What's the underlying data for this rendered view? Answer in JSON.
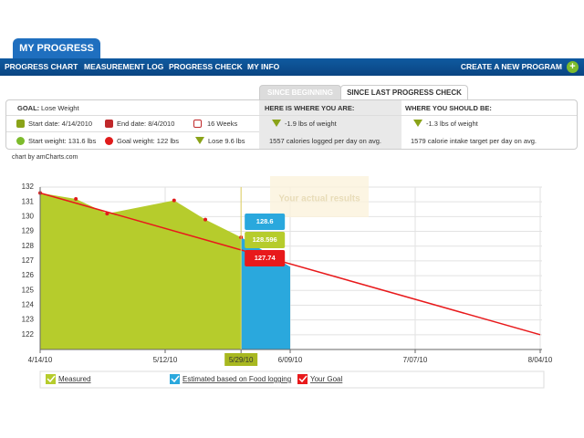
{
  "tabs": {
    "main": "MY PROGRESS"
  },
  "nav": {
    "items": [
      "PROGRESS CHART",
      "MEASUREMENT LOG",
      "PROGRESS CHECK",
      "MY INFO"
    ],
    "action": "CREATE A NEW PROGRAM"
  },
  "view_tabs": [
    "SINCE BEGINNING",
    "SINCE LAST PROGRESS CHECK"
  ],
  "summary": {
    "goal_label": "GOAL:",
    "goal": "Lose Weight",
    "start_date": "Start date: 4/14/2010",
    "end_date": "End date: 8/4/2010",
    "duration": "16 Weeks",
    "start_weight": "Start weight: 131.6 lbs",
    "goal_weight": "Goal weight: 122 lbs",
    "lose": "Lose 9.6 lbs",
    "current_title": "HERE IS WHERE YOU ARE:",
    "current_weight": "-1.9 lbs of weight",
    "current_calories": "1557 calories logged per day on avg.",
    "target_title": "WHERE YOU SHOULD BE:",
    "target_weight": "-1.3 lbs of weight",
    "target_calories": "1579 calorie intake target per day on avg."
  },
  "credit": "chart by amCharts.com",
  "chart_data": {
    "type": "area",
    "annotation": "Your actual results",
    "cursor": "2010-05-29",
    "series": [
      {
        "name": "Measured",
        "type": "area",
        "color": "#b6cc2c",
        "marker_color": "#e01b1b",
        "x": [
          "2010-04-14",
          "2010-04-22",
          "2010-04-29",
          "2010-05-14",
          "2010-05-21",
          "2010-05-29"
        ],
        "values": [
          131.6,
          131.2,
          130.2,
          131.1,
          129.8,
          128.596
        ]
      },
      {
        "name": "Estimated based on Food logging",
        "type": "area",
        "color": "#2aa8dd",
        "x": [
          "2010-05-29",
          "2010-06-09"
        ],
        "values": [
          128.6,
          126.6
        ]
      },
      {
        "name": "Your Goal",
        "type": "line",
        "color": "#e8191b",
        "x": [
          "2010-04-14",
          "2010-05-29",
          "2010-08-04"
        ],
        "values": [
          131.6,
          127.74,
          122
        ]
      }
    ],
    "xlim": [
      "2010-04-14",
      "2010-08-04"
    ],
    "xticks": [
      {
        "value": "2010-04-14",
        "label": "4/14/10"
      },
      {
        "value": "2010-05-12",
        "label": "5/12/10"
      },
      {
        "value": "2010-05-29",
        "label": "5/29/10"
      },
      {
        "value": "2010-06-09",
        "label": "6/09/10"
      },
      {
        "value": "2010-07-07",
        "label": "7/07/10"
      },
      {
        "value": "2010-08-04",
        "label": "8/04/10"
      }
    ],
    "ylim": [
      121,
      132
    ],
    "yticks": [
      122,
      123,
      124,
      125,
      126,
      127,
      128,
      129,
      130,
      131,
      132
    ],
    "grid": true
  }
}
